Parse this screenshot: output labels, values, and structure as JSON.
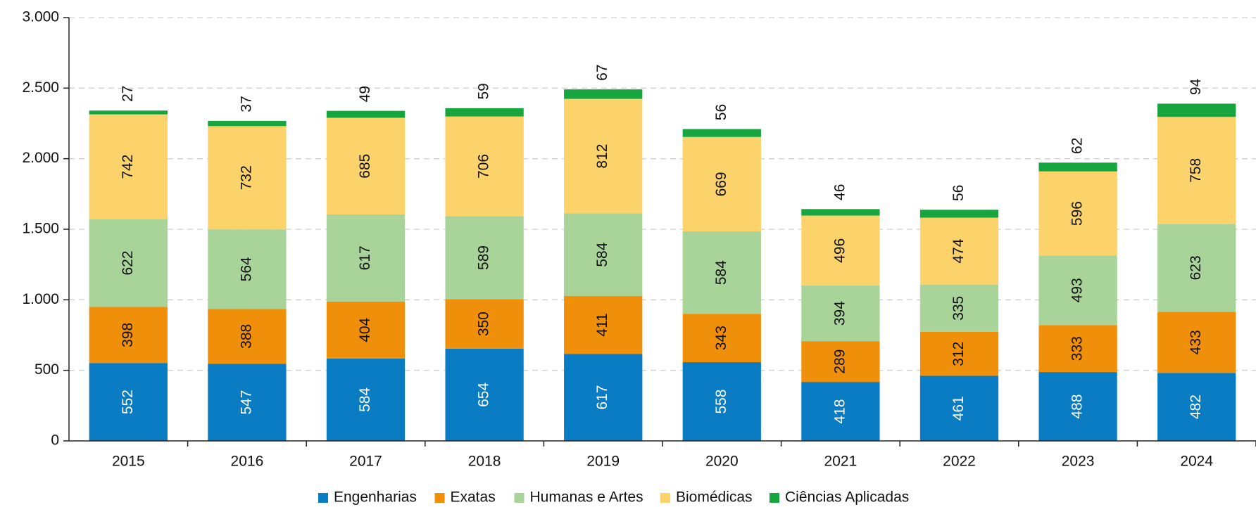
{
  "chart_data": {
    "type": "stacked_bar",
    "categories": [
      "2015",
      "2016",
      "2017",
      "2018",
      "2019",
      "2020",
      "2021",
      "2022",
      "2023",
      "2024"
    ],
    "series": [
      {
        "name": "Engenharias",
        "color": "#0a7cc4",
        "values": [
          552,
          547,
          584,
          654,
          617,
          558,
          418,
          461,
          488,
          482
        ]
      },
      {
        "name": "Exatas",
        "color": "#f0900a",
        "values": [
          398,
          388,
          404,
          350,
          411,
          343,
          289,
          312,
          333,
          433
        ]
      },
      {
        "name": "Humanas e Artes",
        "color": "#a8d49a",
        "values": [
          622,
          564,
          617,
          589,
          584,
          584,
          394,
          335,
          493,
          623
        ]
      },
      {
        "name": "Biomédicas",
        "color": "#fcd36a",
        "values": [
          742,
          732,
          685,
          706,
          812,
          669,
          496,
          474,
          596,
          758
        ]
      },
      {
        "name": "Ciências Aplicadas",
        "color": "#16a53e",
        "values": [
          27,
          37,
          49,
          59,
          67,
          56,
          46,
          56,
          62,
          94
        ]
      }
    ],
    "ylim": [
      0,
      3000
    ],
    "yticks": [
      0,
      500,
      {
        "value": 1000,
        "label": "1.000"
      },
      {
        "value": 1500,
        "label": "1.500"
      },
      {
        "value": 2000,
        "label": "2.000"
      },
      {
        "value": 2500,
        "label": "2.500"
      },
      {
        "value": 3000,
        "label": "3.000"
      }
    ],
    "grid": true,
    "legend": "bottom"
  }
}
